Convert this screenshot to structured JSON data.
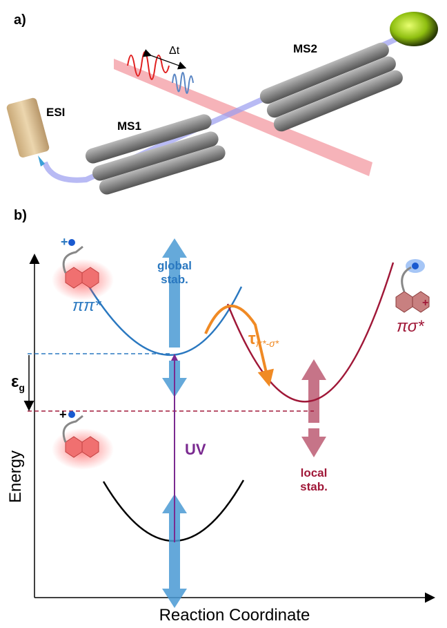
{
  "panel_a": {
    "label": "a)",
    "delay": "Δt",
    "esi": "ESI",
    "ms1": "MS1",
    "ms2": "MS2"
  },
  "panel_b": {
    "label": "b)",
    "pi_pi": "ππ*",
    "pi_sigma": "πσ*",
    "global_stab": [
      "global",
      "stab."
    ],
    "local_stab": [
      "local",
      "stab."
    ],
    "tau": "τ",
    "tau_sub": "π*-σ*",
    "epsilon": "ε",
    "epsilon_sub": "g",
    "uv": "UV",
    "y_axis": "Energy",
    "x_axis": "Reaction Coordinate"
  }
}
